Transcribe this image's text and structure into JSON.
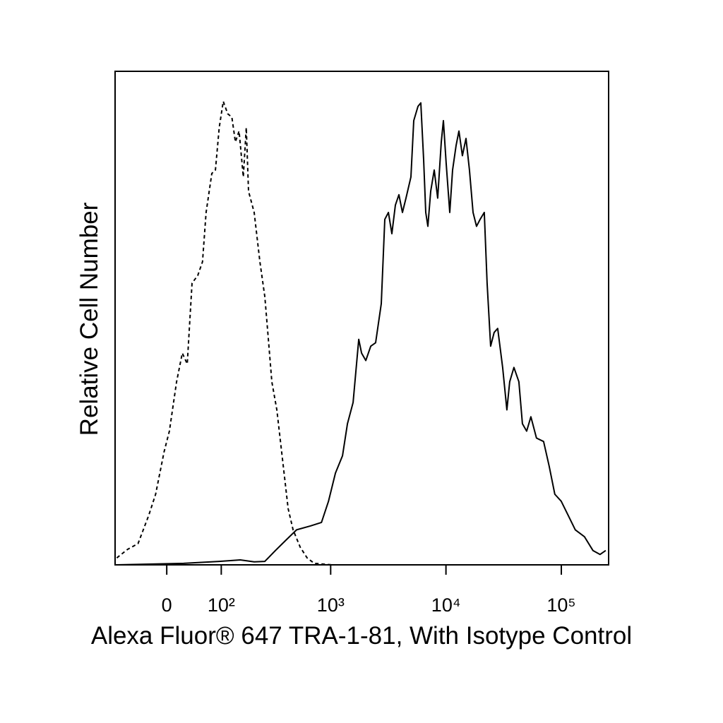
{
  "chart_data": {
    "type": "line",
    "x_label": "Alexa Fluor® 647 TRA-1-81, With Isotype Control",
    "y_label": "Relative Cell Number",
    "xscale": "asinh",
    "xlim": [
      -93,
      257000
    ],
    "xticks": [
      0,
      {
        "value": 100,
        "label": "10²"
      },
      {
        "value": 1000,
        "label": "10³"
      },
      {
        "value": 10000,
        "label": "10⁴"
      },
      {
        "value": 100000,
        "label": "10⁵"
      }
    ],
    "ylim": [
      0,
      100
    ],
    "series": [
      {
        "color": "#000000",
        "style": "dashed",
        "x": [
          -89,
          -66,
          -46,
          -28,
          -17,
          -4,
          4,
          15,
          24,
          32,
          40,
          50,
          59,
          66,
          78,
          86,
          95,
          105,
          117,
          129,
          140,
          152,
          167,
          178,
          187,
          211,
          238,
          264,
          284,
          305,
          338,
          379,
          425,
          470,
          542,
          624,
          720,
          1026
        ],
        "values": [
          1.4,
          3.1,
          4.3,
          10,
          14.3,
          22.9,
          27.1,
          37.1,
          42.9,
          40.7,
          57.1,
          58.6,
          61.4,
          71.4,
          79.3,
          80,
          88.6,
          93.9,
          91.4,
          90.7,
          85.7,
          87.9,
          78.6,
          88.6,
          75.7,
          71.4,
          61.4,
          54.3,
          45.7,
          37.1,
          31.4,
          21.4,
          11.4,
          7.1,
          3.6,
          1.4,
          0.3,
          0
        ]
      },
      {
        "color": "#000000",
        "style": "solid",
        "x": [
          -89,
          26,
          95,
          156,
          211,
          264,
          328,
          407,
          505,
          670,
          832,
          958,
          1101,
          1267,
          1398,
          1566,
          1752,
          1854,
          2018,
          2227,
          2455,
          2751,
          2949,
          3169,
          3397,
          3644,
          3910,
          4195,
          4503,
          4967,
          5259,
          5719,
          6050,
          6403,
          6680,
          6965,
          7372,
          7908,
          8482,
          9105,
          9496,
          10043,
          10784,
          11408,
          12247,
          12950,
          13889,
          14911,
          15990,
          17168,
          18411,
          19764,
          21497,
          22735,
          24407,
          26178,
          28101,
          30997,
          33744,
          35690,
          38844,
          42845,
          45995,
          50019,
          54454,
          60914,
          70148,
          78508,
          87818,
          99712,
          114798,
          132164,
          158764,
          188062,
          216524,
          242402
        ],
        "values": [
          0,
          0.3,
          0.7,
          1,
          0.6,
          0.7,
          2.9,
          5,
          7.1,
          7.9,
          8.6,
          12.9,
          18.6,
          22.1,
          28.6,
          32.9,
          45.7,
          42.9,
          41.4,
          44.3,
          45,
          52.9,
          70,
          71.4,
          67.1,
          72.9,
          75,
          71.4,
          74.3,
          78.6,
          90,
          92.9,
          93.6,
          82.1,
          71.4,
          68.6,
          75.7,
          80,
          74.3,
          85.7,
          90,
          81.4,
          71.4,
          80,
          85,
          87.9,
          82.9,
          86.4,
          80,
          71.4,
          68.6,
          70,
          71.4,
          57.1,
          44.3,
          47.1,
          47.9,
          40,
          31.4,
          37.1,
          40,
          37.1,
          28.6,
          27.1,
          30,
          25.7,
          25,
          20,
          14.3,
          12.9,
          10,
          7.1,
          5.7,
          2.9,
          2.1,
          2.9
        ]
      }
    ]
  }
}
